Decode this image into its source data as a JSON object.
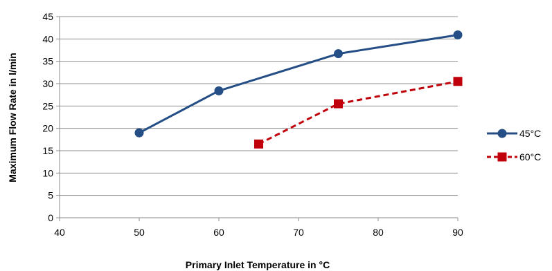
{
  "chart_data": {
    "type": "line",
    "title": "",
    "xlabel": "Primary Inlet Temperature in °C",
    "ylabel": "Maximum Flow Rate in l/min",
    "xlim": [
      40,
      90
    ],
    "ylim": [
      0,
      45
    ],
    "xticks": [
      40,
      50,
      60,
      70,
      80,
      90
    ],
    "yticks": [
      0,
      5,
      10,
      15,
      20,
      25,
      30,
      35,
      40,
      45
    ],
    "grid": "horizontal",
    "legend_position": "right",
    "series": [
      {
        "name": "45°C",
        "color": "#254e86",
        "line_style": "solid",
        "marker": "circle",
        "points": [
          [
            50,
            19.0
          ],
          [
            60,
            28.4
          ],
          [
            75,
            36.7
          ],
          [
            90,
            40.9
          ]
        ]
      },
      {
        "name": "60°C",
        "color": "#c0000a",
        "line_style": "dashed",
        "marker": "square",
        "points": [
          [
            65,
            16.5
          ],
          [
            75,
            25.5
          ],
          [
            90,
            30.5
          ]
        ]
      }
    ]
  }
}
